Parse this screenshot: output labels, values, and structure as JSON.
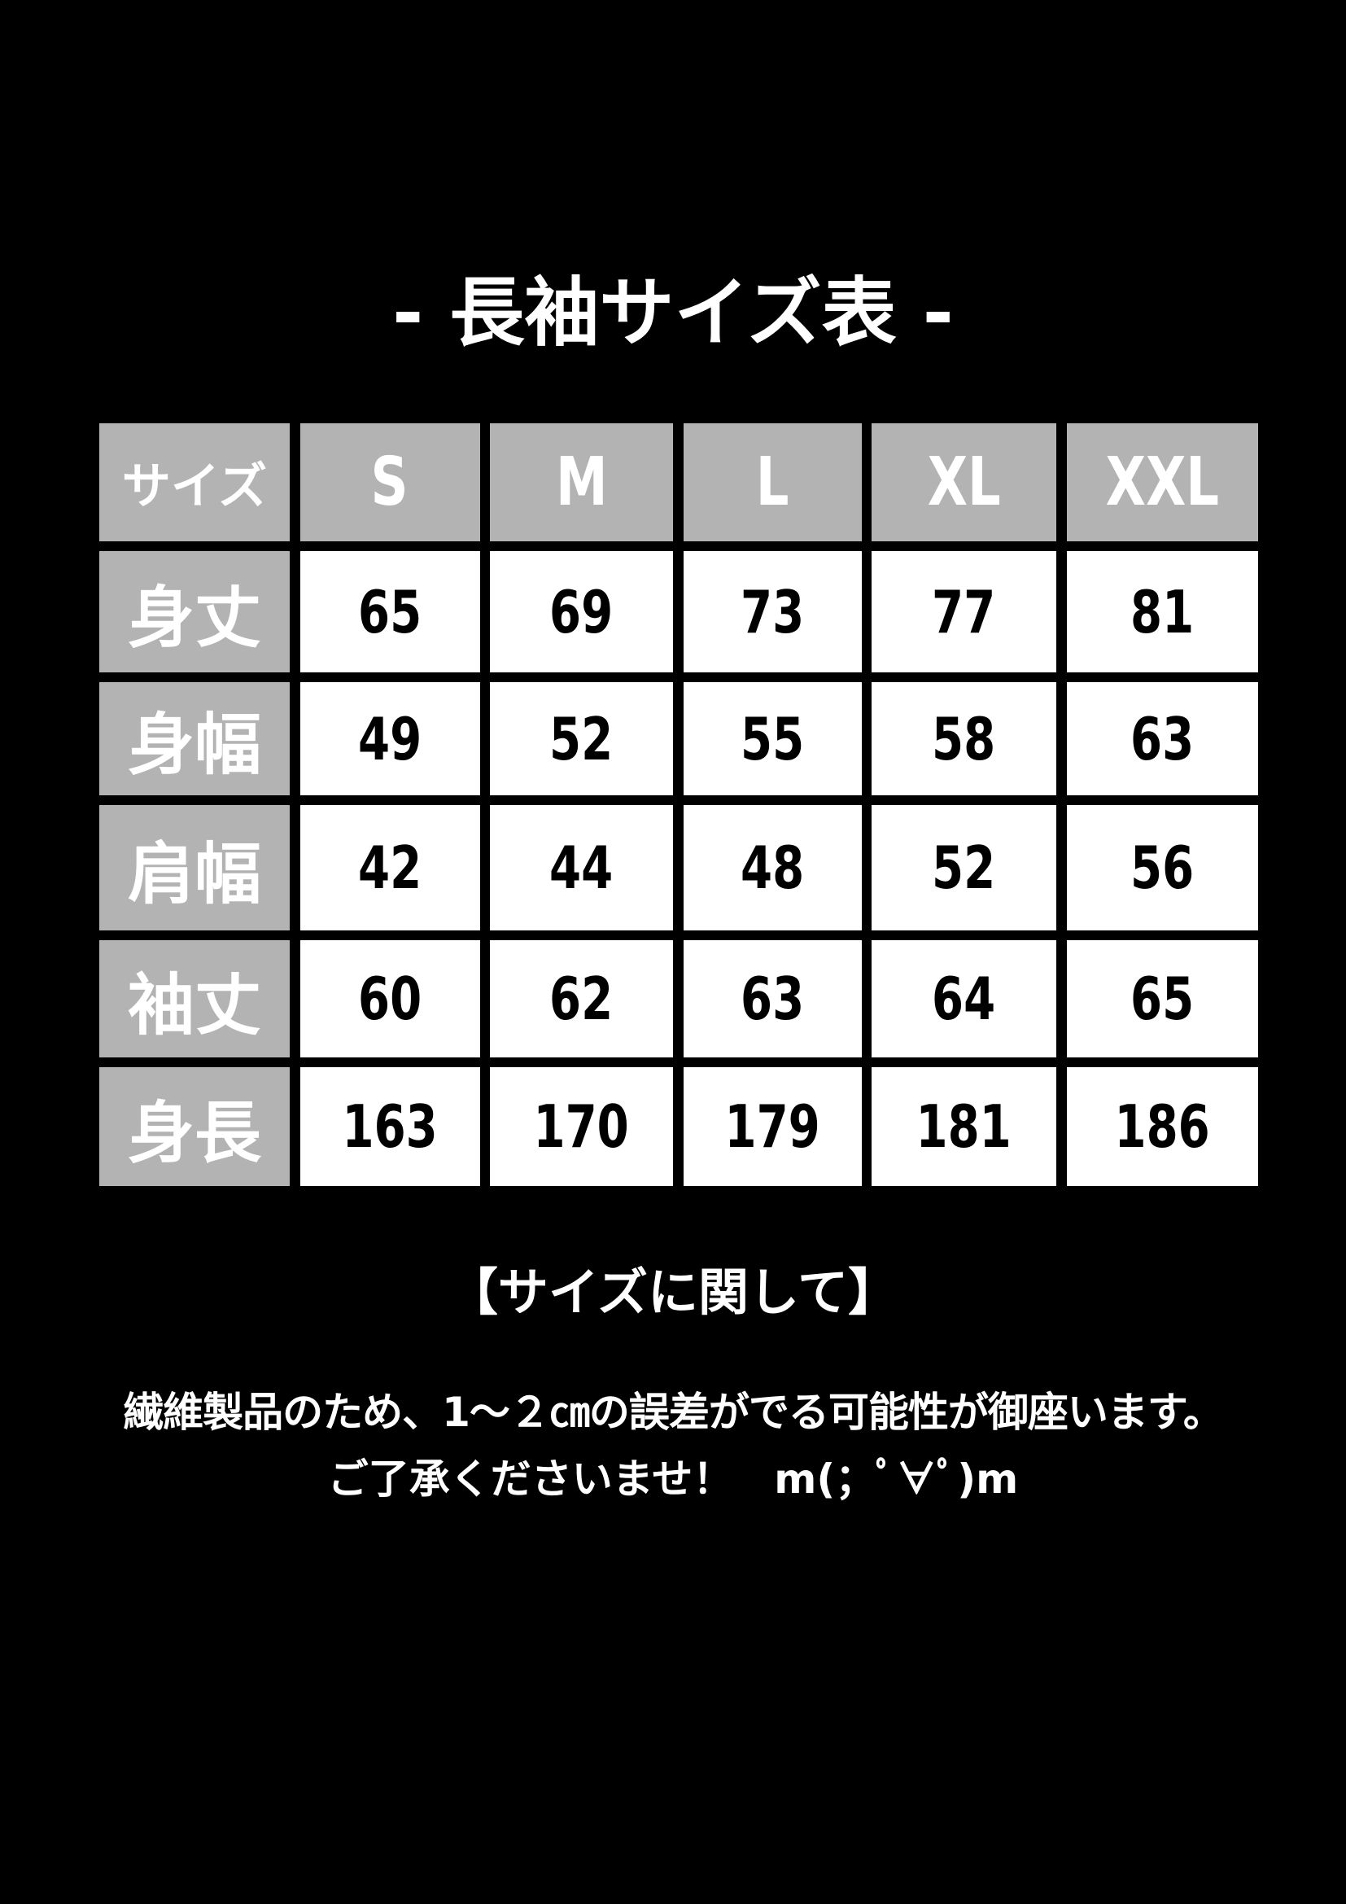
{
  "title": "- 長袖サイズ表 -",
  "table": {
    "corner": "サイズ",
    "sizes": [
      "S",
      "M",
      "L",
      "XL",
      "XXL"
    ],
    "rows": [
      {
        "label": "身丈",
        "values": [
          "65",
          "69",
          "73",
          "77",
          "81"
        ]
      },
      {
        "label": "身幅",
        "values": [
          "49",
          "52",
          "55",
          "58",
          "63"
        ]
      },
      {
        "label": "肩幅",
        "values": [
          "42",
          "44",
          "48",
          "52",
          "56"
        ]
      },
      {
        "label": "袖丈",
        "values": [
          "60",
          "62",
          "63",
          "64",
          "65"
        ]
      },
      {
        "label": "身長",
        "values": [
          "163",
          "170",
          "179",
          "181",
          "186"
        ]
      }
    ]
  },
  "notes": {
    "heading": "【サイズに関して】",
    "line1": "繊維製品のため、1～２㎝の誤差がでる可能性が御座います。",
    "line2": "ご了承くださいませ！　m(；ﾟ∀ﾟ)m"
  },
  "colors": {
    "background": "#000000",
    "header_cell": "#b3b3b3",
    "value_cell": "#ffffff"
  }
}
